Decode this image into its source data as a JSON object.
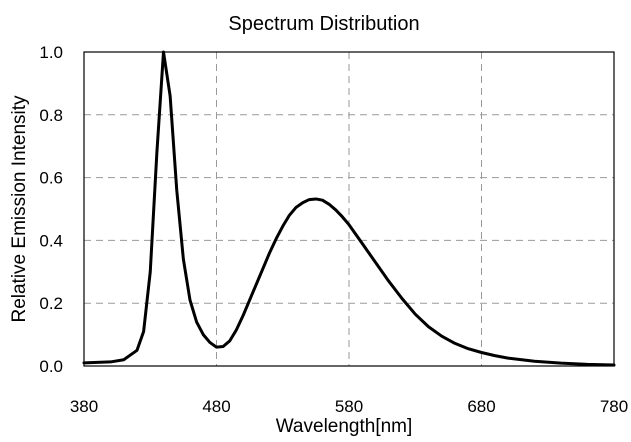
{
  "chart_data": {
    "type": "line",
    "title": "Spectrum Distribution",
    "xlabel": "Wavelength[nm]",
    "ylabel": "Relative Emission Intensity",
    "xlim": [
      380,
      780
    ],
    "ylim": [
      0.0,
      1.0
    ],
    "x_ticks": [
      380,
      480,
      580,
      680,
      780
    ],
    "y_ticks": [
      0.0,
      0.2,
      0.4,
      0.6,
      0.8,
      1.0
    ],
    "x_tick_labels": [
      "380",
      "480",
      "580",
      "680",
      "780"
    ],
    "y_tick_labels": [
      "0.0",
      "0.2",
      "0.4",
      "0.6",
      "0.8",
      "1.0"
    ],
    "grid": true,
    "series": [
      {
        "x": [
          380,
          400,
          410,
          420,
          425,
          430,
          435,
          440,
          445,
          450,
          455,
          460,
          465,
          470,
          475,
          480,
          485,
          490,
          495,
          500,
          505,
          510,
          515,
          520,
          525,
          530,
          535,
          540,
          545,
          550,
          555,
          560,
          565,
          570,
          575,
          580,
          590,
          600,
          610,
          620,
          630,
          640,
          650,
          660,
          670,
          680,
          690,
          700,
          720,
          740,
          760,
          780
        ],
        "y": [
          0.01,
          0.013,
          0.02,
          0.05,
          0.11,
          0.3,
          0.68,
          1.0,
          0.86,
          0.56,
          0.34,
          0.21,
          0.14,
          0.1,
          0.075,
          0.06,
          0.062,
          0.08,
          0.115,
          0.16,
          0.21,
          0.26,
          0.31,
          0.36,
          0.405,
          0.445,
          0.48,
          0.505,
          0.52,
          0.53,
          0.532,
          0.528,
          0.515,
          0.497,
          0.475,
          0.45,
          0.39,
          0.33,
          0.27,
          0.215,
          0.165,
          0.125,
          0.095,
          0.072,
          0.055,
          0.043,
          0.033,
          0.025,
          0.015,
          0.009,
          0.005,
          0.003
        ]
      }
    ]
  }
}
